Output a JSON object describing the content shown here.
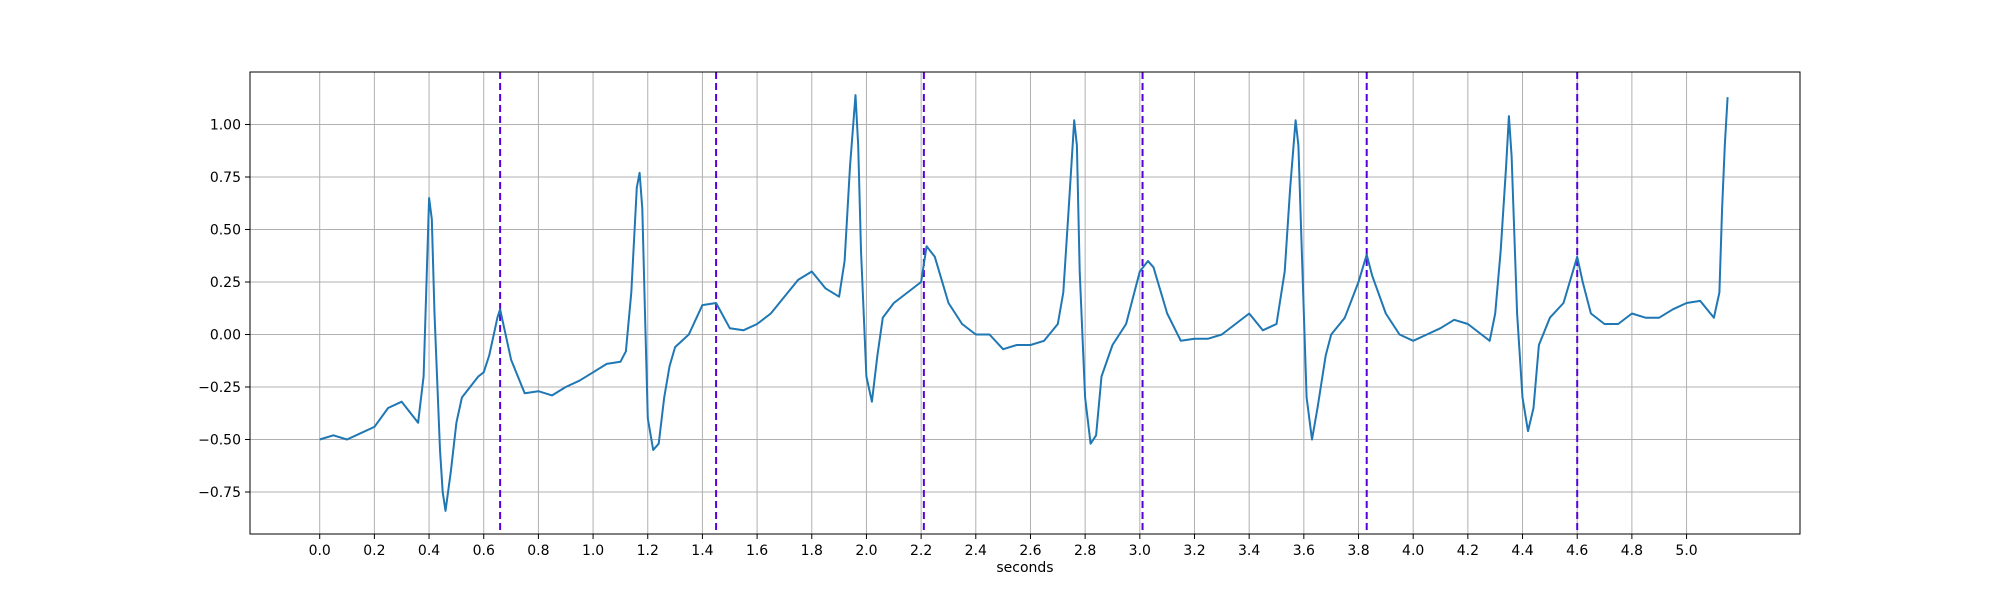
{
  "chart_data": {
    "type": "line",
    "title": "",
    "xlabel": "seconds",
    "ylabel": "",
    "xlim": [
      -0.255,
      5.415
    ],
    "ylim": [
      -0.95,
      1.25
    ],
    "grid": true,
    "xticks": [
      0.0,
      0.2,
      0.4,
      0.6,
      0.8,
      1.0,
      1.2,
      1.4,
      1.6,
      1.8,
      2.0,
      2.2,
      2.4,
      2.6,
      2.8,
      3.0,
      3.2,
      3.4,
      3.6,
      3.8,
      4.0,
      4.2,
      4.4,
      4.6,
      4.8,
      5.0
    ],
    "xtick_labels": [
      "0.0",
      "0.2",
      "0.4",
      "0.6",
      "0.8",
      "1.0",
      "1.2",
      "1.4",
      "1.6",
      "1.8",
      "2.0",
      "2.2",
      "2.4",
      "2.6",
      "2.8",
      "3.0",
      "3.2",
      "3.4",
      "3.6",
      "3.8",
      "4.0",
      "4.2",
      "4.4",
      "4.6",
      "4.8",
      "5.0"
    ],
    "yticks": [
      -0.75,
      -0.5,
      -0.25,
      0.0,
      0.25,
      0.5,
      0.75,
      1.0
    ],
    "ytick_labels": [
      "−0.75",
      "−0.50",
      "−0.25",
      "0.00",
      "0.25",
      "0.50",
      "0.75",
      "1.00"
    ],
    "vertical_markers": [
      {
        "x": 0.66,
        "color": "#5500dd",
        "style": "dashed"
      },
      {
        "x": 1.45,
        "color": "#5500dd",
        "style": "dashed"
      },
      {
        "x": 2.21,
        "color": "#5500dd",
        "style": "dashed"
      },
      {
        "x": 3.01,
        "color": "#5500dd",
        "style": "dashed"
      },
      {
        "x": 3.83,
        "color": "#5500dd",
        "style": "dashed"
      },
      {
        "x": 4.6,
        "color": "#5500dd",
        "style": "dashed"
      }
    ],
    "series": [
      {
        "color": "#1f77b4",
        "x": [
          0.0,
          0.05,
          0.1,
          0.15,
          0.2,
          0.25,
          0.3,
          0.33,
          0.36,
          0.38,
          0.4,
          0.41,
          0.42,
          0.44,
          0.45,
          0.46,
          0.48,
          0.5,
          0.52,
          0.55,
          0.58,
          0.6,
          0.62,
          0.64,
          0.65,
          0.66,
          0.68,
          0.7,
          0.75,
          0.8,
          0.85,
          0.9,
          0.95,
          1.0,
          1.05,
          1.1,
          1.12,
          1.14,
          1.16,
          1.17,
          1.18,
          1.19,
          1.2,
          1.22,
          1.24,
          1.26,
          1.28,
          1.3,
          1.35,
          1.4,
          1.45,
          1.5,
          1.55,
          1.6,
          1.65,
          1.7,
          1.75,
          1.8,
          1.85,
          1.9,
          1.92,
          1.94,
          1.96,
          1.97,
          1.98,
          2.0,
          2.02,
          2.04,
          2.06,
          2.1,
          2.15,
          2.2,
          2.22,
          2.25,
          2.3,
          2.35,
          2.4,
          2.45,
          2.5,
          2.55,
          2.6,
          2.65,
          2.7,
          2.72,
          2.74,
          2.76,
          2.77,
          2.78,
          2.8,
          2.82,
          2.84,
          2.86,
          2.9,
          2.95,
          3.0,
          3.03,
          3.05,
          3.1,
          3.15,
          3.2,
          3.25,
          3.3,
          3.35,
          3.4,
          3.45,
          3.5,
          3.53,
          3.55,
          3.57,
          3.58,
          3.59,
          3.61,
          3.63,
          3.65,
          3.68,
          3.7,
          3.75,
          3.8,
          3.83,
          3.85,
          3.9,
          3.95,
          4.0,
          4.05,
          4.1,
          4.15,
          4.2,
          4.25,
          4.28,
          4.3,
          4.32,
          4.34,
          4.35,
          4.36,
          4.38,
          4.4,
          4.42,
          4.44,
          4.46,
          4.5,
          4.55,
          4.6,
          4.62,
          4.65,
          4.7,
          4.75,
          4.8,
          4.85,
          4.9,
          4.95,
          5.0,
          5.05,
          5.1,
          5.12,
          5.13,
          5.14,
          5.15
        ],
        "y": [
          -0.5,
          -0.48,
          -0.5,
          -0.47,
          -0.44,
          -0.35,
          -0.32,
          -0.37,
          -0.42,
          -0.2,
          0.65,
          0.55,
          0.1,
          -0.55,
          -0.75,
          -0.84,
          -0.65,
          -0.42,
          -0.3,
          -0.25,
          -0.2,
          -0.18,
          -0.1,
          0.02,
          0.08,
          0.12,
          0.0,
          -0.12,
          -0.28,
          -0.27,
          -0.29,
          -0.25,
          -0.22,
          -0.18,
          -0.14,
          -0.13,
          -0.08,
          0.2,
          0.7,
          0.77,
          0.6,
          0.1,
          -0.4,
          -0.55,
          -0.52,
          -0.3,
          -0.15,
          -0.06,
          0.0,
          0.14,
          0.15,
          0.03,
          0.02,
          0.05,
          0.1,
          0.18,
          0.26,
          0.3,
          0.22,
          0.18,
          0.35,
          0.8,
          1.14,
          0.9,
          0.4,
          -0.2,
          -0.32,
          -0.1,
          0.08,
          0.15,
          0.2,
          0.25,
          0.42,
          0.37,
          0.15,
          0.05,
          0.0,
          0.0,
          -0.07,
          -0.05,
          -0.05,
          -0.03,
          0.05,
          0.2,
          0.6,
          1.02,
          0.9,
          0.3,
          -0.3,
          -0.52,
          -0.48,
          -0.2,
          -0.05,
          0.05,
          0.3,
          0.35,
          0.32,
          0.1,
          -0.03,
          -0.02,
          -0.02,
          0.0,
          0.05,
          0.1,
          0.02,
          0.05,
          0.3,
          0.7,
          1.02,
          0.9,
          0.5,
          -0.3,
          -0.5,
          -0.35,
          -0.1,
          0.0,
          0.08,
          0.25,
          0.38,
          0.28,
          0.1,
          0.0,
          -0.03,
          0.0,
          0.03,
          0.07,
          0.05,
          0.0,
          -0.03,
          0.1,
          0.4,
          0.8,
          1.04,
          0.85,
          0.1,
          -0.3,
          -0.46,
          -0.35,
          -0.05,
          0.08,
          0.15,
          0.37,
          0.25,
          0.1,
          0.05,
          0.05,
          0.1,
          0.08,
          0.08,
          0.12,
          0.15,
          0.16,
          0.08,
          0.2,
          0.6,
          0.9,
          1.13
        ]
      }
    ]
  }
}
